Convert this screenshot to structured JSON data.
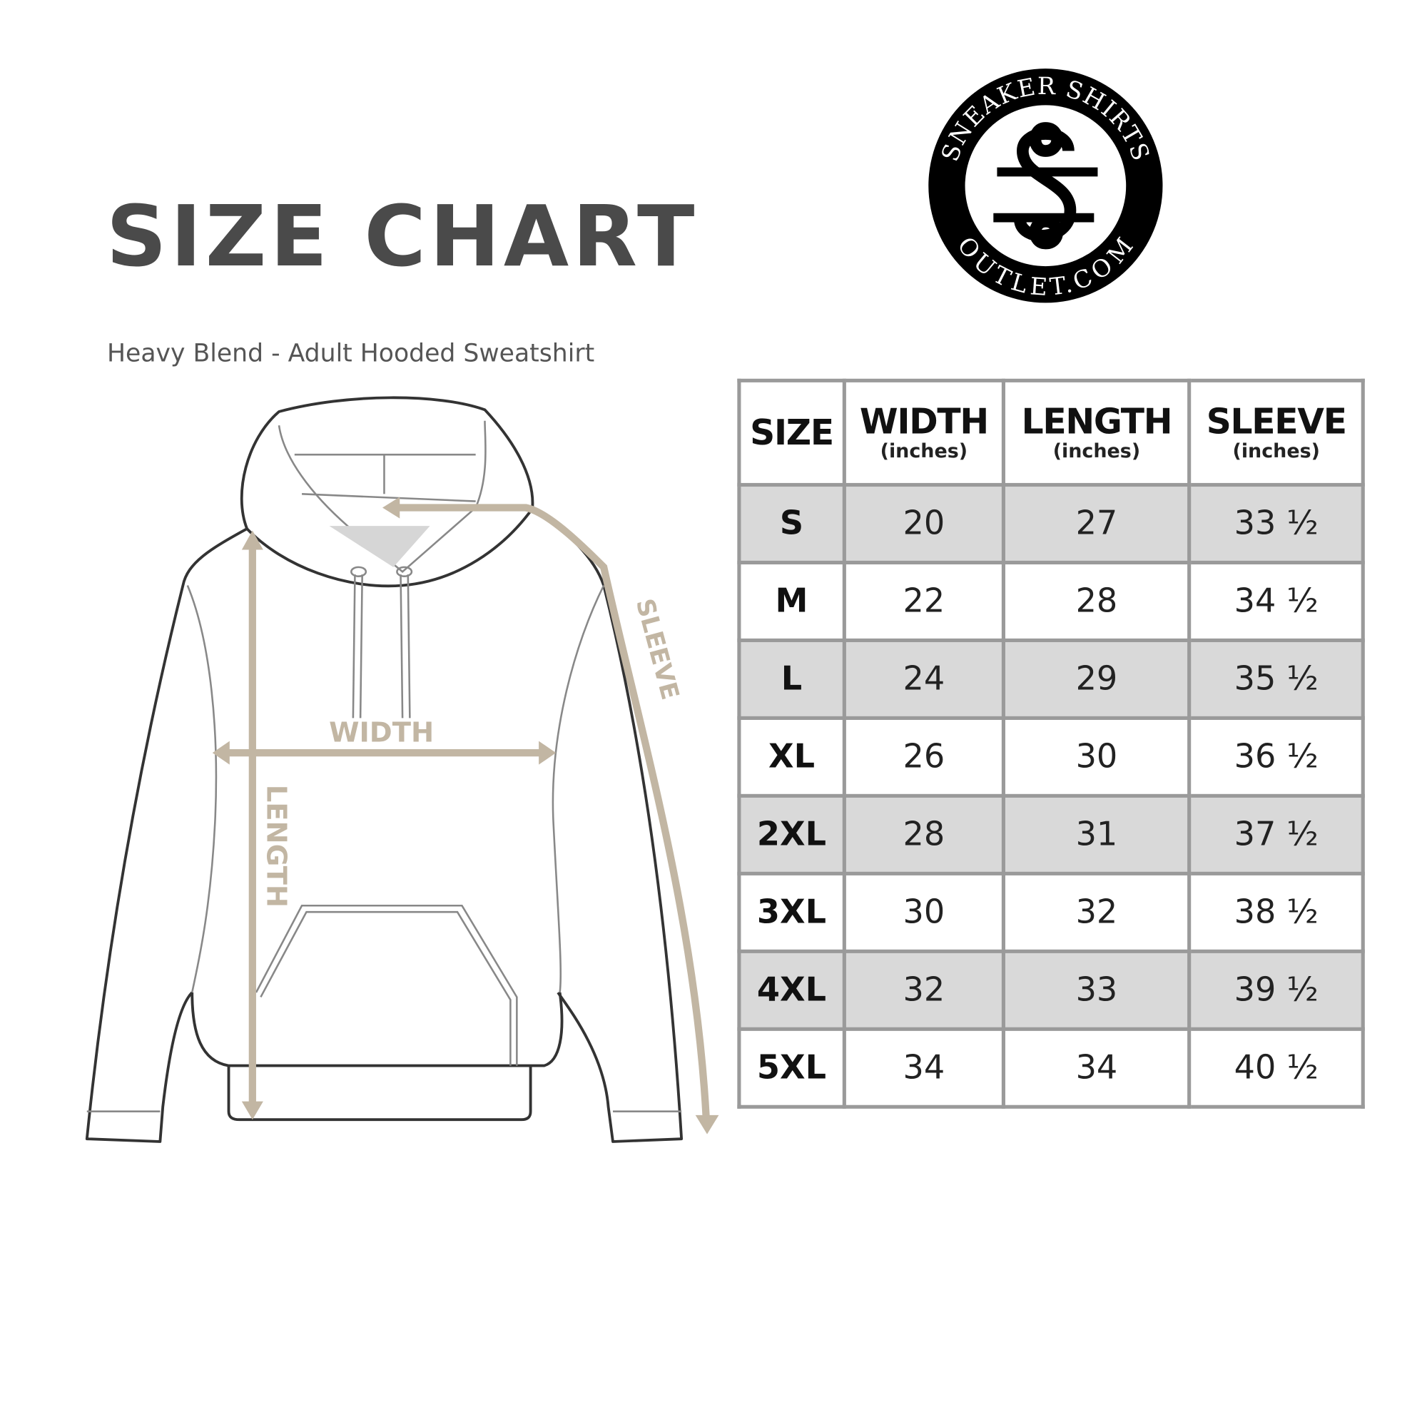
{
  "header": {
    "title": "SIZE CHART",
    "subtitle": "Heavy Blend - Adult Hooded Sweatshirt"
  },
  "logo": {
    "top_text": "SNEAKER SHIRTS",
    "bottom_text": "OUTLET.COM",
    "monogram": "SS"
  },
  "diagram": {
    "labels": {
      "width": "WIDTH",
      "length": "LENGTH",
      "sleeve": "SLEEVE"
    },
    "arrow_color": "#c2b6a3"
  },
  "table": {
    "columns": [
      {
        "label": "SIZE",
        "unit": ""
      },
      {
        "label": "WIDTH",
        "unit": "(inches)"
      },
      {
        "label": "LENGTH",
        "unit": "(inches)"
      },
      {
        "label": "SLEEVE",
        "unit": "(inches)"
      }
    ],
    "rows": [
      [
        "S",
        "20",
        "27",
        "33 ½"
      ],
      [
        "M",
        "22",
        "28",
        "34 ½"
      ],
      [
        "L",
        "24",
        "29",
        "35 ½"
      ],
      [
        "XL",
        "26",
        "30",
        "36 ½"
      ],
      [
        "2XL",
        "28",
        "31",
        "37 ½"
      ],
      [
        "3XL",
        "30",
        "32",
        "38 ½"
      ],
      [
        "4XL",
        "32",
        "33",
        "39 ½"
      ],
      [
        "5XL",
        "34",
        "34",
        "40 ½"
      ]
    ],
    "shade_color": "#d9d9d9",
    "border_color": "#9a9a9a"
  }
}
